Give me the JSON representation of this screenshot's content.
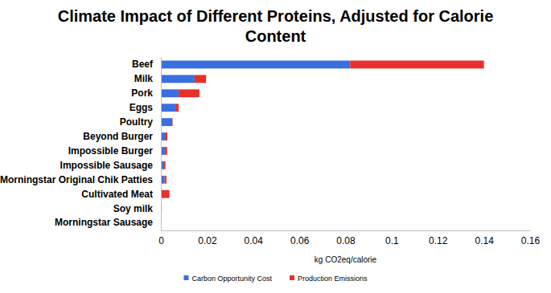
{
  "chart_data": {
    "type": "bar",
    "orientation": "horizontal",
    "stacked": true,
    "title": "Climate Impact of Different Proteins, Adjusted for Calorie Content",
    "xlabel": "kg CO2eq/calorie",
    "categories": [
      "Beef",
      "Milk",
      "Pork",
      "Eggs",
      "Poultry",
      "Beyond Burger",
      "Impossible Burger",
      "Impossible Sausage",
      "Morningstar Original Chik Patties",
      "Cultivated Meat",
      "Soy milk",
      "Morningstar Sausage"
    ],
    "series": [
      {
        "name": "Carbon Opportunity Cost",
        "color": "#3a6fe0",
        "values": [
          0.082,
          0.0146,
          0.0077,
          0.0063,
          0.0049,
          0.0017,
          0.0017,
          0.0014,
          0.0016,
          0.0003,
          0.0001,
          0
        ]
      },
      {
        "name": "Production Emissions",
        "color": "#e8302a",
        "values": [
          0.058,
          0.005,
          0.009,
          0.0014,
          0.0002,
          0.0011,
          0.001,
          0.0006,
          0.0008,
          0.0034,
          0.0003,
          0.0003
        ]
      }
    ],
    "xlim": [
      0,
      0.16
    ],
    "xticks": [
      0,
      0.02,
      0.04,
      0.06,
      0.08,
      0.1,
      0.12,
      0.14,
      0.16
    ],
    "grid": false,
    "legend": "bottom"
  }
}
